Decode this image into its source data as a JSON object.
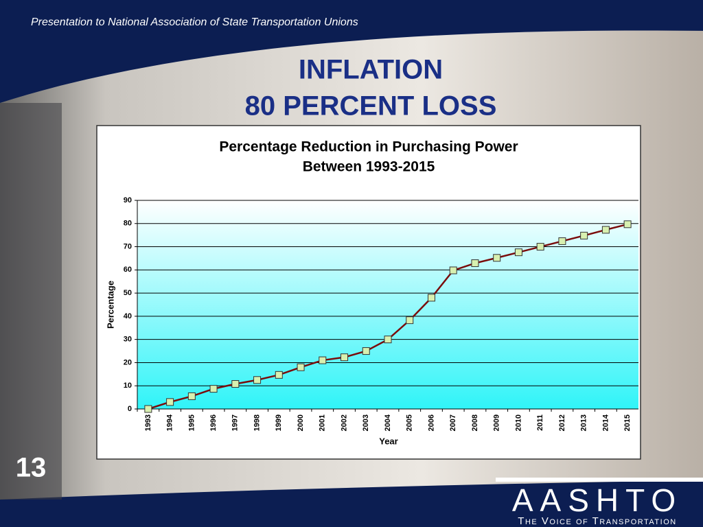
{
  "header": "Presentation to National Association of State Transportation Unions",
  "title": [
    "INFLATION",
    "80 PERCENT LOSS"
  ],
  "page_number": "13",
  "logo": {
    "name": "AASHTO",
    "tagline": "The Voice of Transportation"
  },
  "chart_data": {
    "type": "line",
    "title": "Percentage Reduction in Purchasing Power",
    "subtitle": "Between 1993-2015",
    "x_label": "Year",
    "y_label": "Percentage",
    "categories": [
      "1993",
      "1994",
      "1995",
      "1996",
      "1997",
      "1998",
      "1999",
      "2000",
      "2001",
      "2002",
      "2003",
      "2004",
      "2005",
      "2006",
      "2007",
      "2008",
      "2009",
      "2010",
      "2011",
      "2012",
      "2013",
      "2014",
      "2015"
    ],
    "series": [
      {
        "name": "Percentage",
        "color": "#7a0c0c",
        "marker_color": "#d8f0b0",
        "values": [
          0,
          3,
          5.5,
          8.7,
          10.8,
          12.5,
          14.7,
          18,
          21,
          22.3,
          25,
          30,
          38.3,
          48,
          59.8,
          62.9,
          65.2,
          67.6,
          70,
          72.4,
          74.8,
          77.3,
          79.7
        ]
      }
    ],
    "ylim": [
      0,
      90
    ],
    "yticks": [
      0,
      10,
      20,
      30,
      40,
      50,
      60,
      70,
      80,
      90
    ],
    "grid": true
  }
}
